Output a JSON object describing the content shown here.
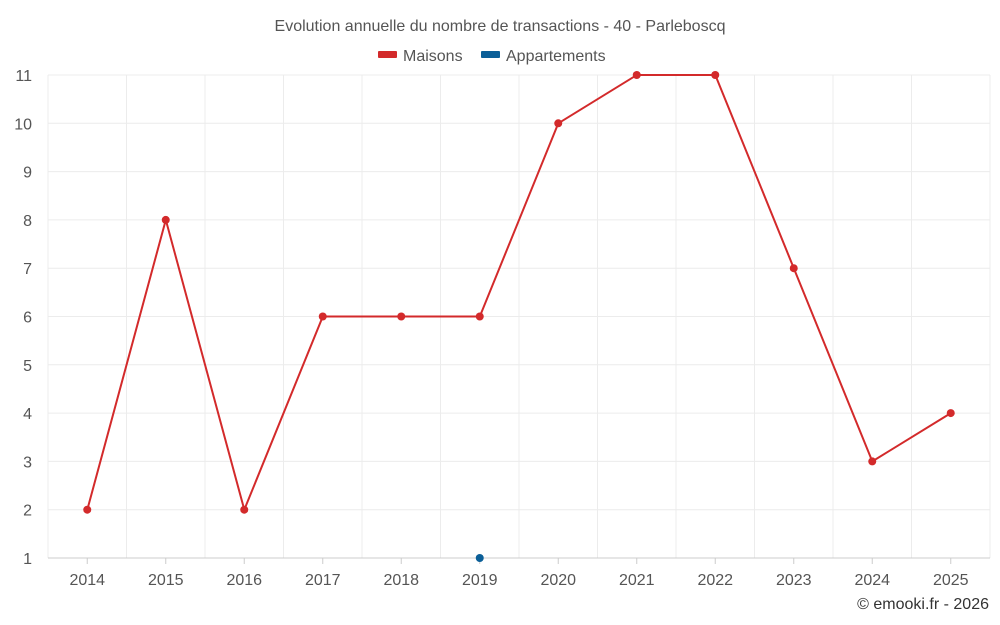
{
  "chart_data": {
    "type": "line",
    "title": "Evolution annuelle du nombre de transactions - 40 - Parleboscq",
    "categories": [
      "2014",
      "2015",
      "2016",
      "2017",
      "2018",
      "2019",
      "2020",
      "2021",
      "2022",
      "2023",
      "2024",
      "2025"
    ],
    "series": [
      {
        "name": "Maisons",
        "color": "#d32a2b",
        "values": [
          2,
          8,
          2,
          6,
          6,
          6,
          10,
          11,
          11,
          7,
          3,
          4
        ]
      },
      {
        "name": "Appartements",
        "color": "#0b5f98",
        "values": [
          null,
          null,
          null,
          null,
          null,
          1,
          null,
          null,
          null,
          null,
          null,
          null
        ]
      }
    ],
    "y_ticks": [
      "1",
      "2",
      "3",
      "4",
      "5",
      "6",
      "7",
      "8",
      "9",
      "10",
      "11"
    ],
    "ylim": [
      1,
      11
    ],
    "grid": true,
    "legend_position": "top-center",
    "credit": "© emooki.fr - 2026"
  }
}
